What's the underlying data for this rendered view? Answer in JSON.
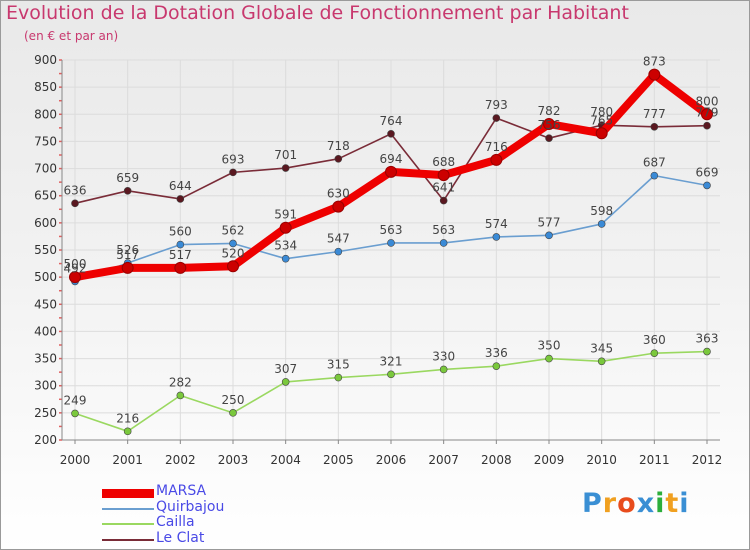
{
  "title": "Evolution de la Dotation Globale de Fonctionnement par Habitant",
  "subtitle": "(en € et par an)",
  "logo": {
    "text": "Proxiti",
    "letters": [
      "P",
      "r",
      "o",
      "x",
      "i",
      "t",
      "i"
    ],
    "colors": [
      "#3a8fd4",
      "#f0a020",
      "#e84c1c",
      "#3a8fd4",
      "#2cae3c",
      "#f0a020",
      "#3a8fd4"
    ]
  },
  "chart_data": {
    "type": "line",
    "title": "Evolution de la Dotation Globale de Fonctionnement par Habitant",
    "subtitle": "(en € et par an)",
    "xlabel": "",
    "ylabel": "",
    "categories": [
      "2000",
      "2001",
      "2002",
      "2003",
      "2004",
      "2005",
      "2006",
      "2007",
      "2008",
      "2009",
      "2010",
      "2011",
      "2012"
    ],
    "ylim": [
      200,
      900
    ],
    "yticks": [
      200,
      250,
      300,
      350,
      400,
      450,
      500,
      550,
      600,
      650,
      700,
      750,
      800,
      850,
      900
    ],
    "grid": true,
    "series": [
      {
        "name": "MARSA",
        "color": "#ee0000",
        "marker": "#cc0000",
        "bold": true,
        "values": [
          500,
          517,
          517,
          520,
          591,
          630,
          694,
          688,
          716,
          782,
          765,
          873,
          800
        ],
        "labels": [
          "500",
          "517",
          "517",
          "520",
          "591",
          "630",
          "694",
          "688",
          "716",
          "782",
          "765",
          "873",
          "800"
        ]
      },
      {
        "name": "Quirbajou",
        "color": "#6a9ed0",
        "marker": "#3a8ad6",
        "values": [
          492,
          526,
          560,
          562,
          534,
          547,
          563,
          563,
          574,
          577,
          598,
          687,
          669
        ],
        "labels": [
          "492",
          "526",
          "560",
          "562",
          "534",
          "547",
          "563",
          "563",
          "574",
          "577",
          "598",
          "687",
          "669"
        ]
      },
      {
        "name": "Cailla",
        "color": "#9ad860",
        "marker": "#7ac83c",
        "values": [
          249,
          216,
          282,
          250,
          307,
          315,
          321,
          330,
          336,
          350,
          345,
          360,
          363
        ],
        "labels": [
          "249",
          "216",
          "282",
          "250",
          "307",
          "315",
          "321",
          "330",
          "336",
          "350",
          "345",
          "360",
          "363"
        ]
      },
      {
        "name": "Le Clat",
        "color": "#7a2c38",
        "marker": "#5a1820",
        "values": [
          636,
          659,
          644,
          693,
          701,
          718,
          764,
          641,
          793,
          756,
          780,
          777,
          779
        ],
        "labels": [
          "636",
          "659",
          "644",
          "693",
          "701",
          "718",
          "764",
          "641",
          "793",
          "756",
          "780",
          "777",
          "779"
        ]
      }
    ]
  }
}
